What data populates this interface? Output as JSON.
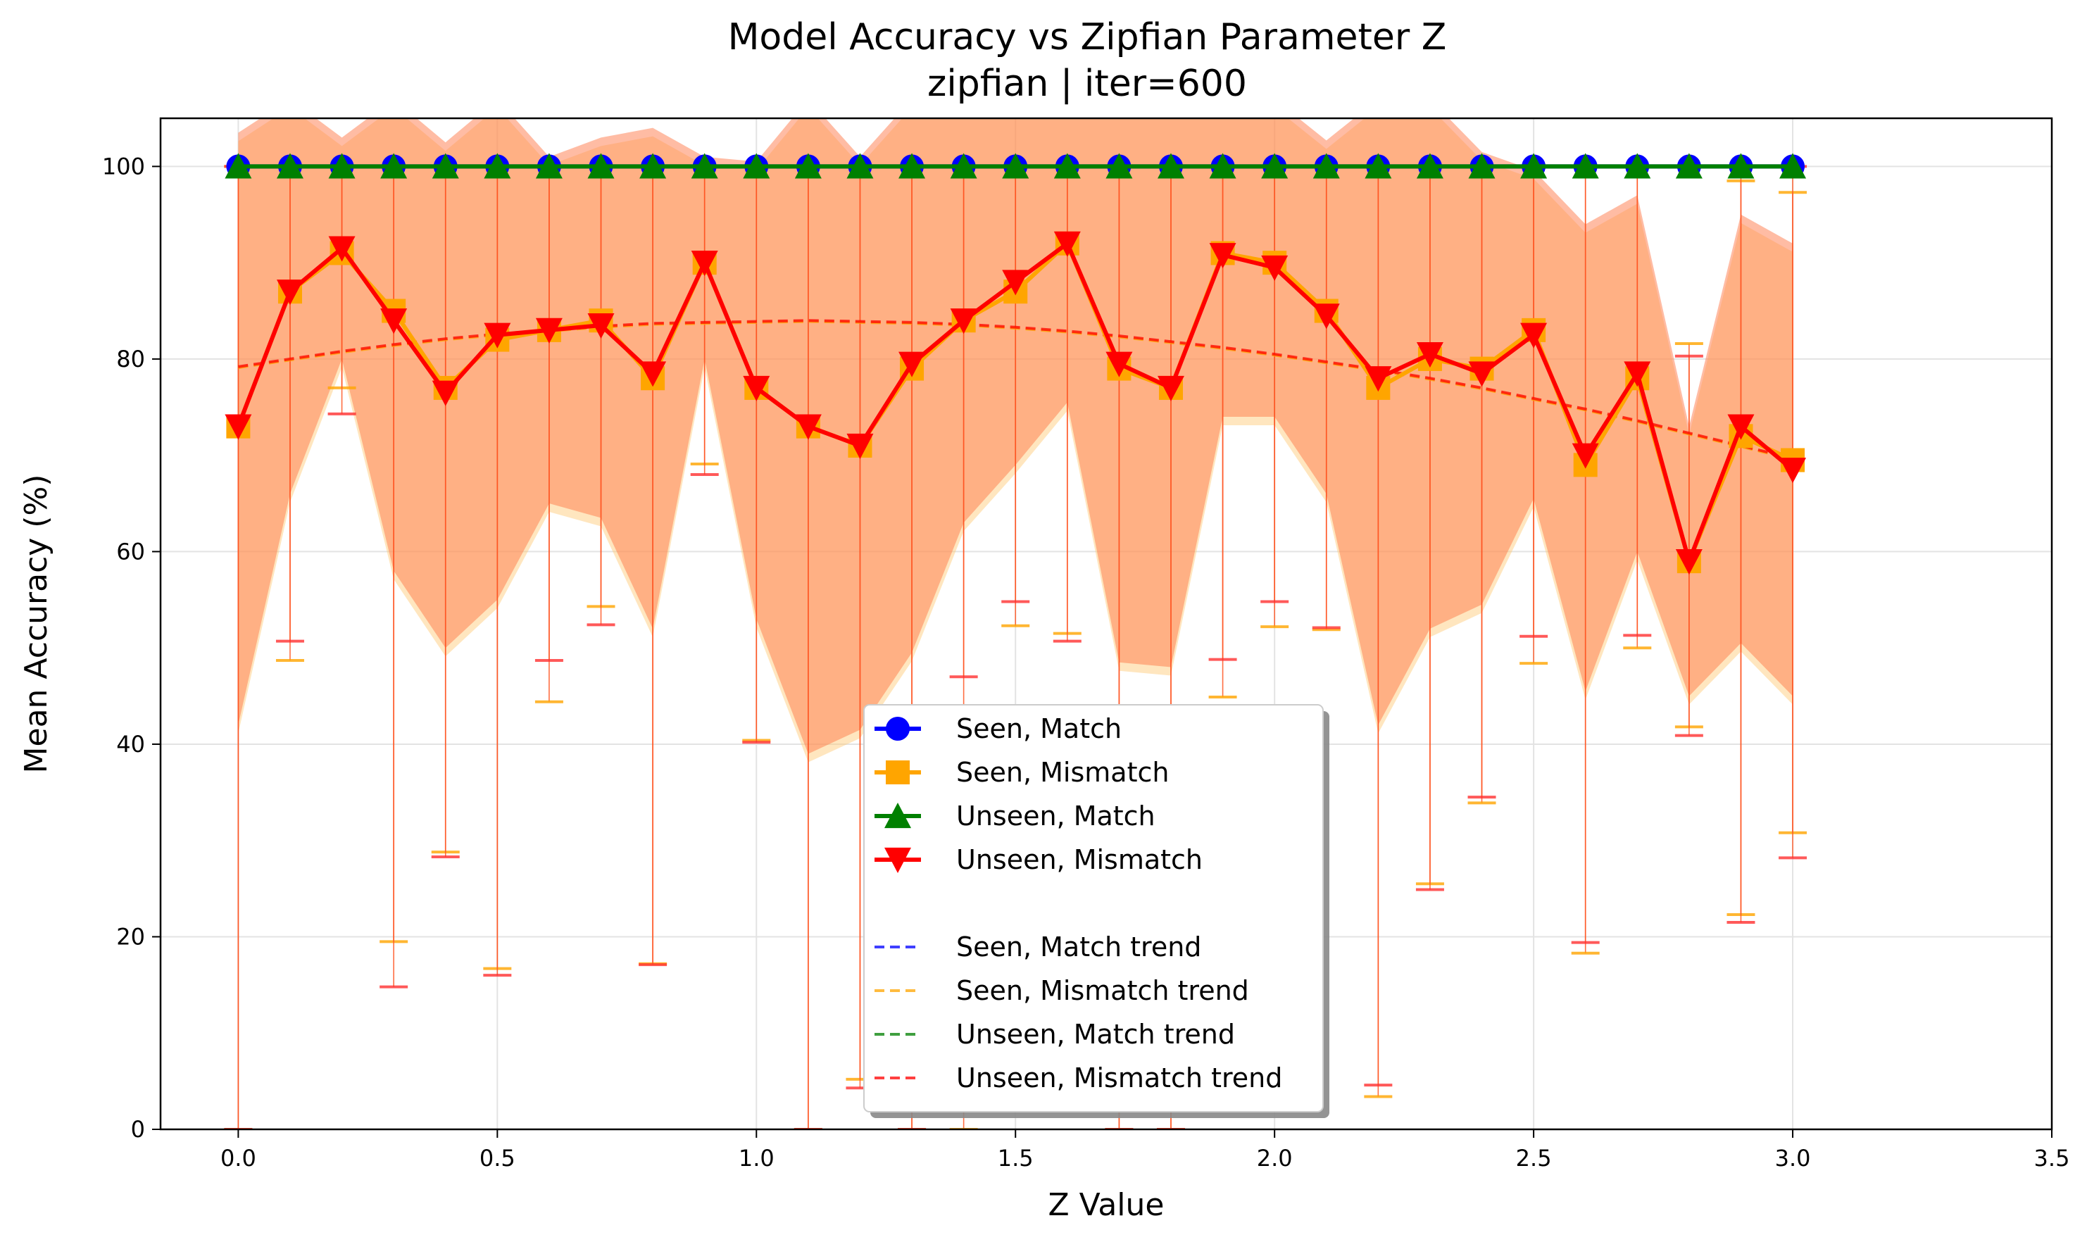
{
  "chart_data": {
    "type": "line",
    "title": "Model Accuracy vs Zipfian Parameter Z",
    "subtitle": "zipfian | iter=600",
    "xlabel": "Z Value",
    "ylabel": "Mean Accuracy (%)",
    "xlim": [
      -0.15,
      3.5
    ],
    "ylim": [
      0,
      105
    ],
    "xticks": [
      0.0,
      0.5,
      1.0,
      1.5,
      2.0,
      2.5,
      3.0,
      3.5
    ],
    "xtick_labels": [
      "0.0",
      "0.5",
      "1.0",
      "1.5",
      "2.0",
      "2.5",
      "3.0",
      "3.5"
    ],
    "yticks": [
      0,
      20,
      40,
      60,
      80,
      100
    ],
    "ytick_labels": [
      "0",
      "20",
      "40",
      "60",
      "80",
      "100"
    ],
    "grid": true,
    "legend_position": "bottom-center",
    "x": [
      0.0,
      0.1,
      0.2,
      0.3,
      0.4,
      0.5,
      0.6,
      0.7,
      0.8,
      0.9,
      1.0,
      1.1,
      1.2,
      1.3,
      1.4,
      1.5,
      1.6,
      1.7,
      1.8,
      1.9,
      2.0,
      2.1,
      2.2,
      2.3,
      2.4,
      2.5,
      2.6,
      2.7,
      2.8,
      2.9,
      3.0
    ],
    "series": [
      {
        "name": "Seen, Match",
        "color": "#0000ff",
        "marker": "circle",
        "values": [
          100,
          100,
          100,
          100,
          100,
          100,
          100,
          100,
          100,
          100,
          100,
          100,
          100,
          100,
          100,
          100,
          100,
          100,
          100,
          100,
          100,
          100,
          100,
          100,
          100,
          100,
          100,
          100,
          100,
          100,
          100
        ],
        "error_low": [
          100,
          100,
          100,
          100,
          100,
          100,
          100,
          100,
          100,
          100,
          100,
          100,
          100,
          100,
          100,
          100,
          100,
          100,
          100,
          100,
          100,
          100,
          100,
          100,
          100,
          100,
          100,
          100,
          100,
          100,
          100
        ],
        "error_high": [
          100,
          100,
          100,
          100,
          100,
          100,
          100,
          100,
          100,
          100,
          100,
          100,
          100,
          100,
          100,
          100,
          100,
          100,
          100,
          100,
          100,
          100,
          100,
          100,
          100,
          100,
          100,
          100,
          100,
          100,
          100
        ]
      },
      {
        "name": "Seen, Mismatch",
        "color": "#ffa500",
        "marker": "square",
        "values": [
          73,
          87,
          91,
          85,
          77,
          82,
          83,
          84,
          78,
          90,
          77,
          73,
          71,
          79,
          84,
          87,
          92,
          79,
          77,
          91,
          90,
          85,
          77,
          80,
          79,
          83,
          69,
          78,
          59,
          72,
          69.5
        ],
        "error_low": [
          0,
          48.7,
          77,
          19.5,
          28.8,
          16.7,
          44.4,
          54.3,
          17.2,
          69.1,
          40.4,
          0,
          5.2,
          0,
          0,
          52.3,
          51.5,
          0,
          0,
          44.9,
          52.2,
          51.9,
          3.4,
          25.5,
          33.9,
          48.4,
          18.3,
          50,
          41.8,
          22.3,
          30.8
        ],
        "error_high": [
          100,
          100,
          100,
          100,
          100,
          100,
          100,
          100,
          100,
          100,
          100,
          100,
          100,
          100,
          100,
          100,
          100,
          100,
          100,
          100,
          100,
          100,
          100,
          100,
          100,
          100,
          100,
          100,
          81.6,
          98.5,
          97.3
        ]
      },
      {
        "name": "Unseen, Match",
        "color": "#008000",
        "marker": "triangle-up",
        "values": [
          100,
          100,
          100,
          100,
          100,
          100,
          100,
          100,
          100,
          100,
          100,
          100,
          100,
          100,
          100,
          100,
          100,
          100,
          100,
          100,
          100,
          100,
          100,
          100,
          100,
          100,
          100,
          100,
          100,
          100,
          100
        ],
        "error_low": [
          100,
          100,
          100,
          100,
          100,
          100,
          100,
          100,
          100,
          100,
          100,
          100,
          100,
          100,
          100,
          100,
          100,
          100,
          100,
          100,
          100,
          100,
          100,
          100,
          100,
          100,
          100,
          100,
          100,
          100,
          100
        ],
        "error_high": [
          100,
          100,
          100,
          100,
          100,
          100,
          100,
          100,
          100,
          100,
          100,
          100,
          100,
          100,
          100,
          100,
          100,
          100,
          100,
          100,
          100,
          100,
          100,
          100,
          100,
          100,
          100,
          100,
          100,
          100,
          100
        ]
      },
      {
        "name": "Unseen, Mismatch",
        "color": "#ff0000",
        "marker": "triangle-down",
        "values": [
          73,
          87,
          91.5,
          84,
          76.5,
          82.5,
          83,
          83.5,
          78.5,
          90,
          77,
          73,
          71,
          79.5,
          84,
          88,
          92,
          79.5,
          77,
          90.8,
          89.5,
          84.5,
          78,
          80.5,
          78.5,
          82.5,
          70,
          78.5,
          59,
          73,
          68.5
        ],
        "error_low": [
          0,
          50.7,
          74.3,
          14.8,
          28.3,
          16,
          48.7,
          52.4,
          17.1,
          68,
          40.2,
          0,
          4.3,
          0,
          47,
          54.8,
          50.7,
          0,
          0,
          48.8,
          54.8,
          52.1,
          4.6,
          24.9,
          34.5,
          51.2,
          19.4,
          51.3,
          40.9,
          21.5,
          28.2
        ],
        "error_high": [
          100,
          100,
          100,
          100,
          100,
          100,
          100,
          100,
          100,
          100,
          100,
          100,
          100,
          100,
          100,
          100,
          100,
          100,
          100,
          100,
          100,
          100,
          100,
          100,
          100,
          100,
          100,
          100,
          80.3,
          100,
          100
        ],
        "band_low": [
          42,
          66,
          80,
          58,
          50,
          55,
          65,
          63.5,
          52,
          80,
          53,
          39,
          41.5,
          49.5,
          63,
          69,
          75.5,
          48.5,
          48,
          74,
          74,
          66,
          42,
          52,
          54.5,
          65.5,
          45.5,
          60,
          45,
          50.5,
          45
        ],
        "band_high": [
          103.5,
          107,
          103,
          107,
          102.5,
          107,
          101,
          103,
          104,
          101,
          100.5,
          107,
          101,
          107,
          107,
          107,
          107,
          107,
          107,
          107,
          107,
          102.7,
          107,
          107,
          101.5,
          99.6,
          94,
          97,
          73,
          95,
          92
        ]
      }
    ],
    "trends": [
      {
        "name": "Seen, Match trend",
        "color": "#0000ff",
        "style": "dashed",
        "values": [
          100,
          100,
          100,
          100,
          100,
          100,
          100,
          100,
          100,
          100,
          100,
          100,
          100,
          100,
          100,
          100,
          100,
          100,
          100,
          100,
          100,
          100,
          100,
          100,
          100,
          100,
          100,
          100,
          100,
          100,
          100
        ]
      },
      {
        "name": "Seen, Mismatch trend",
        "color": "#ffa500",
        "style": "dashed",
        "values": [
          79.1,
          79.9,
          80.7,
          81.4,
          82,
          82.5,
          82.9,
          83.3,
          83.6,
          83.7,
          83.8,
          83.9,
          83.8,
          83.7,
          83.5,
          83.2,
          82.8,
          82.3,
          81.7,
          81.1,
          80.4,
          79.6,
          78.8,
          77.9,
          76.9,
          75.8,
          74.7,
          73.5,
          72.2,
          70.9,
          69.6
        ]
      },
      {
        "name": "Unseen, Match trend",
        "color": "#008000",
        "style": "dashed",
        "values": [
          100,
          100,
          100,
          100,
          100,
          100,
          100,
          100,
          100,
          100,
          100,
          100,
          100,
          100,
          100,
          100,
          100,
          100,
          100,
          100,
          100,
          100,
          100,
          100,
          100,
          100,
          100,
          100,
          100,
          100,
          100
        ]
      },
      {
        "name": "Unseen, Mismatch trend",
        "color": "#ff0000",
        "style": "dashed",
        "values": [
          79.2,
          80,
          80.8,
          81.5,
          82.1,
          82.6,
          83,
          83.4,
          83.7,
          83.8,
          83.9,
          84,
          83.9,
          83.8,
          83.6,
          83.3,
          82.9,
          82.4,
          81.8,
          81.2,
          80.5,
          79.7,
          78.9,
          78,
          77,
          75.9,
          74.8,
          73.6,
          72.3,
          71,
          69.7
        ]
      }
    ]
  }
}
